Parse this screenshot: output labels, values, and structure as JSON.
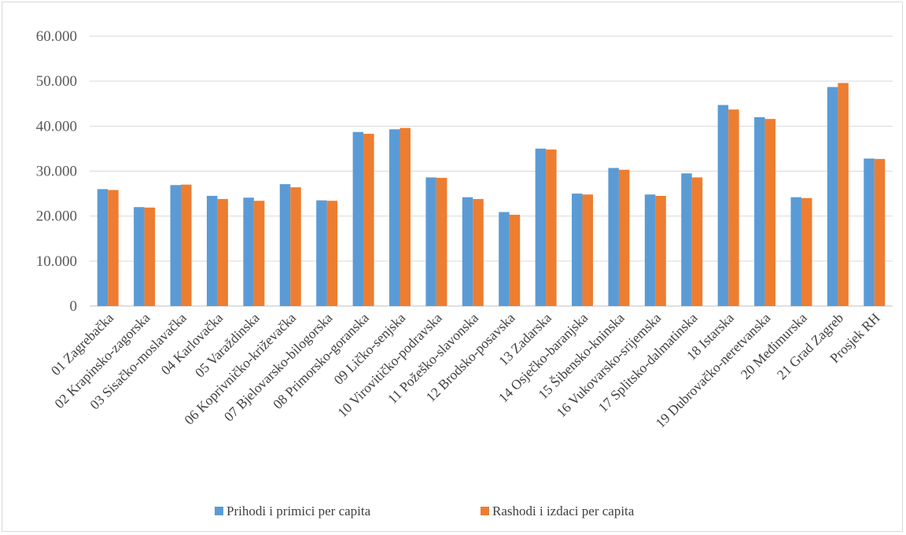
{
  "chart_data": {
    "type": "bar",
    "title": "",
    "xlabel": "",
    "ylabel": "",
    "ylim": [
      0,
      60000
    ],
    "yticks": [
      0,
      10000,
      20000,
      30000,
      40000,
      50000,
      60000
    ],
    "ytick_labels": [
      "0",
      "10.000",
      "20.000",
      "30.000",
      "40.000",
      "50.000",
      "60.000"
    ],
    "grid": true,
    "legend_position": "bottom",
    "categories": [
      "01 Zagrebačka",
      "02 Krapinsko-zagorska",
      "03 Sisačko-moslavačka",
      "04 Karlovačka",
      "05 Varaždinska",
      "06 Koprivničko-križevačka",
      "07 Bjelovarsko-bilogorska",
      "08 Primorsko-goranska",
      "09 Ličko-senjska",
      "10 Virovitičko-podravska",
      "11 Požeško-slavonska",
      "12 Brodsko-posavska",
      "13 Zadarska",
      "14 Osječko-baranjska",
      "15 Šibensko-kninska",
      "16 Vukovarsko-srijemska",
      "17 Splitsko-dalmatinska",
      "18 Istarska",
      "19 Dubrovačko-neretvanska",
      "20 Međimurska",
      "21 Grad Zagreb",
      "Prosjek RH"
    ],
    "series": [
      {
        "name": "Prihodi i primici per capita",
        "color": "#5b9bd5",
        "values": [
          26000,
          22000,
          26900,
          24500,
          24100,
          27100,
          23500,
          38700,
          39300,
          28600,
          24200,
          20900,
          35000,
          25000,
          30700,
          24800,
          29500,
          44700,
          42000,
          24200,
          48700,
          32800
        ]
      },
      {
        "name": "Rashodi i izdaci per capita",
        "color": "#ed7d31",
        "values": [
          25800,
          21900,
          27000,
          23800,
          23400,
          26400,
          23400,
          38300,
          39600,
          28500,
          23800,
          20300,
          34800,
          24800,
          30300,
          24500,
          28600,
          43700,
          41600,
          24000,
          49600,
          32700
        ]
      }
    ]
  }
}
